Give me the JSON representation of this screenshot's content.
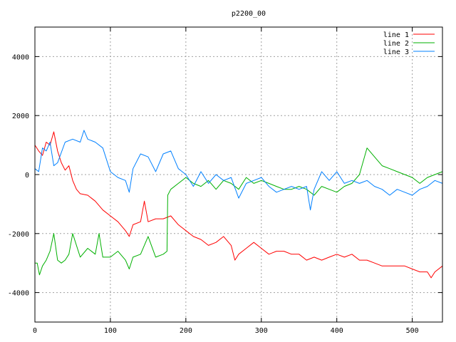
{
  "chart_data": {
    "type": "line",
    "title": "p2200_00",
    "xlabel": "",
    "ylabel": "",
    "xlim": [
      0,
      540
    ],
    "ylim": [
      -5000,
      5000
    ],
    "xticks": [
      0,
      100,
      200,
      300,
      400,
      500
    ],
    "yticks": [
      -4000,
      -2000,
      0,
      2000,
      4000
    ],
    "grid": true,
    "legend_position": "top-right",
    "series": [
      {
        "name": "line 1",
        "color": "#ff0000",
        "x": [
          0,
          5,
          10,
          15,
          20,
          25,
          30,
          35,
          40,
          45,
          50,
          55,
          60,
          70,
          80,
          90,
          100,
          110,
          120,
          125,
          130,
          140,
          145,
          150,
          160,
          170,
          180,
          190,
          200,
          210,
          220,
          230,
          240,
          250,
          260,
          265,
          270,
          280,
          290,
          300,
          310,
          320,
          330,
          340,
          350,
          360,
          370,
          380,
          390,
          400,
          410,
          420,
          430,
          440,
          450,
          460,
          470,
          480,
          490,
          500,
          510,
          520,
          525,
          530,
          540
        ],
        "y": [
          1000,
          800,
          650,
          1100,
          1000,
          1450,
          800,
          400,
          150,
          300,
          -200,
          -500,
          -650,
          -700,
          -900,
          -1200,
          -1400,
          -1600,
          -1900,
          -2100,
          -1700,
          -1600,
          -900,
          -1600,
          -1500,
          -1500,
          -1400,
          -1700,
          -1900,
          -2100,
          -2200,
          -2400,
          -2300,
          -2100,
          -2400,
          -2900,
          -2700,
          -2500,
          -2300,
          -2500,
          -2700,
          -2600,
          -2600,
          -2700,
          -2700,
          -2900,
          -2800,
          -2900,
          -2800,
          -2700,
          -2800,
          -2700,
          -2900,
          -2900,
          -3000,
          -3100,
          -3100,
          -3100,
          -3100,
          -3200,
          -3300,
          -3300,
          -3500,
          -3300,
          -3100
        ]
      },
      {
        "name": "line 2",
        "color": "#00b000",
        "x": [
          0,
          3,
          6,
          10,
          15,
          20,
          25,
          30,
          35,
          40,
          45,
          50,
          60,
          70,
          80,
          85,
          90,
          100,
          110,
          120,
          125,
          130,
          140,
          150,
          160,
          170,
          175,
          176,
          180,
          190,
          200,
          210,
          220,
          230,
          240,
          250,
          260,
          270,
          280,
          290,
          300,
          310,
          320,
          330,
          340,
          350,
          360,
          370,
          380,
          390,
          400,
          410,
          420,
          430,
          440,
          450,
          460,
          470,
          480,
          490,
          500,
          510,
          520,
          530,
          540
        ],
        "y": [
          -3000,
          -3000,
          -3400,
          -3100,
          -2900,
          -2600,
          -2000,
          -2900,
          -3000,
          -2900,
          -2700,
          -2000,
          -2800,
          -2500,
          -2700,
          -2000,
          -2800,
          -2800,
          -2600,
          -2900,
          -3200,
          -2800,
          -2700,
          -2100,
          -2800,
          -2700,
          -2600,
          -700,
          -500,
          -300,
          -100,
          -300,
          -400,
          -200,
          -500,
          -200,
          -300,
          -500,
          -100,
          -300,
          -200,
          -300,
          -400,
          -500,
          -500,
          -400,
          -500,
          -700,
          -400,
          -500,
          -600,
          -400,
          -300,
          0,
          900,
          600,
          300,
          200,
          100,
          0,
          -100,
          -300,
          -100,
          0,
          100
        ]
      },
      {
        "name": "line 3",
        "color": "#0080ff",
        "x": [
          0,
          5,
          10,
          15,
          20,
          25,
          30,
          40,
          50,
          60,
          65,
          70,
          80,
          90,
          100,
          110,
          120,
          125,
          130,
          140,
          150,
          160,
          170,
          180,
          190,
          200,
          210,
          220,
          230,
          240,
          250,
          260,
          270,
          280,
          290,
          300,
          310,
          320,
          330,
          340,
          350,
          360,
          365,
          370,
          380,
          390,
          400,
          410,
          420,
          430,
          440,
          450,
          460,
          470,
          480,
          490,
          500,
          510,
          520,
          530,
          540
        ],
        "y": [
          200,
          100,
          900,
          800,
          1100,
          300,
          400,
          1100,
          1200,
          1100,
          1500,
          1200,
          1100,
          900,
          100,
          -100,
          -200,
          -600,
          200,
          700,
          600,
          100,
          700,
          800,
          200,
          0,
          -400,
          100,
          -300,
          0,
          -200,
          -100,
          -800,
          -300,
          -200,
          -100,
          -400,
          -600,
          -500,
          -400,
          -500,
          -400,
          -1200,
          -500,
          100,
          -200,
          100,
          -300,
          -200,
          -300,
          -200,
          -400,
          -500,
          -700,
          -500,
          -600,
          -700,
          -500,
          -400,
          -200,
          -300
        ]
      }
    ]
  }
}
